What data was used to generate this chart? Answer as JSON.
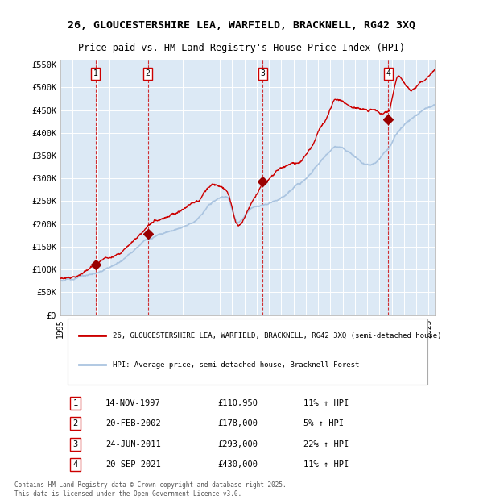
{
  "title": "26, GLOUCESTERSHIRE LEA, WARFIELD, BRACKNELL, RG42 3XQ",
  "subtitle": "Price paid vs. HM Land Registry's House Price Index (HPI)",
  "background_color": "#dce9f5",
  "plot_bg_color": "#dce9f5",
  "ylabel": "",
  "ylim": [
    0,
    560000
  ],
  "yticks": [
    0,
    50000,
    100000,
    150000,
    200000,
    250000,
    300000,
    350000,
    400000,
    450000,
    500000,
    550000
  ],
  "ytick_labels": [
    "£0",
    "£50K",
    "£100K",
    "£150K",
    "£200K",
    "£250K",
    "£300K",
    "£350K",
    "£400K",
    "£450K",
    "£500K",
    "£550K"
  ],
  "hpi_color": "#aac4e0",
  "price_color": "#cc0000",
  "marker_color": "#990000",
  "dashed_color": "#cc0000",
  "sale_dates": [
    1997.87,
    2002.13,
    2011.48,
    2021.72
  ],
  "sale_prices": [
    110950,
    178000,
    293000,
    430000
  ],
  "sale_labels": [
    "1",
    "2",
    "3",
    "4"
  ],
  "legend_price_label": "26, GLOUCESTERSHIRE LEA, WARFIELD, BRACKNELL, RG42 3XQ (semi-detached house)",
  "legend_hpi_label": "HPI: Average price, semi-detached house, Bracknell Forest",
  "table_entries": [
    {
      "num": "1",
      "date": "14-NOV-1997",
      "price": "£110,950",
      "change": "11% ↑ HPI"
    },
    {
      "num": "2",
      "date": "20-FEB-2002",
      "price": "£178,000",
      "change": "5% ↑ HPI"
    },
    {
      "num": "3",
      "date": "24-JUN-2011",
      "price": "£293,000",
      "change": "22% ↑ HPI"
    },
    {
      "num": "4",
      "date": "20-SEP-2021",
      "price": "£430,000",
      "change": "11% ↑ HPI"
    }
  ],
  "footnote": "Contains HM Land Registry data © Crown copyright and database right 2025.\nThis data is licensed under the Open Government Licence v3.0.",
  "xmin": 1995.0,
  "xmax": 2025.5
}
